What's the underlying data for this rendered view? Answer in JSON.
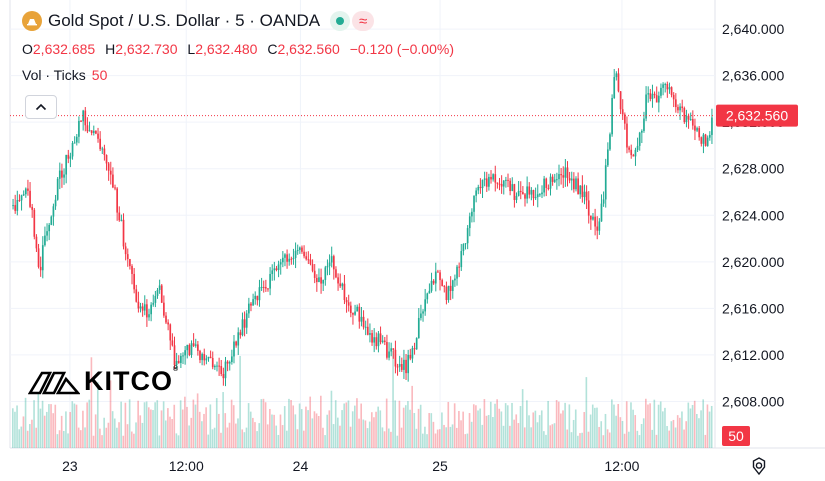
{
  "header": {
    "symbol": "Gold Spot / U.S. Dollar · 5 · OANDA",
    "open_key": "O",
    "open": "2,632.685",
    "high_key": "H",
    "high": "2,632.730",
    "low_key": "L",
    "low": "2,632.480",
    "close_key": "C",
    "close": "2,632.560",
    "change": "−0.120 (−0.00%)",
    "volume_label": "Vol · Ticks",
    "volume_value": "50",
    "market_status_icons": [
      "open-dot-icon",
      "approx-icon"
    ]
  },
  "watermark": {
    "brand": "KITCO",
    "reg": "®"
  },
  "colors": {
    "up": "#22ab94",
    "down": "#f23645",
    "price_label": "#f23645"
  },
  "chart_data": {
    "type": "candlestick",
    "title": "Gold Spot / U.S. Dollar · 5 · OANDA",
    "y_ticks": [
      "2,608.000",
      "2,612.000",
      "2,616.000",
      "2,620.000",
      "2,624.000",
      "2,628.000",
      "2,632.000",
      "2,636.000",
      "2,640.000"
    ],
    "y_tick_values": [
      2608,
      2612,
      2616,
      2620,
      2624,
      2628,
      2632,
      2636,
      2640
    ],
    "ylim": [
      2604.0,
      2642.5
    ],
    "x_ticks": [
      "23",
      "12:00",
      "24",
      "25",
      "12:00"
    ],
    "x_tick_positions": [
      0.085,
      0.25,
      0.412,
      0.61,
      0.868
    ],
    "last_price": 2632.56,
    "last_price_label": "2,632.560",
    "volume_last_label": "50",
    "grid": true,
    "price_path": [
      [
        0.0,
        2624.8
      ],
      [
        0.01,
        2625.4
      ],
      [
        0.02,
        2626.2
      ],
      [
        0.03,
        2623.0
      ],
      [
        0.037,
        2619.0
      ],
      [
        0.045,
        2621.5
      ],
      [
        0.055,
        2624.5
      ],
      [
        0.068,
        2627.5
      ],
      [
        0.08,
        2629.0
      ],
      [
        0.09,
        2631.0
      ],
      [
        0.1,
        2632.5
      ],
      [
        0.112,
        2631.2
      ],
      [
        0.122,
        2630.0
      ],
      [
        0.132,
        2629.0
      ],
      [
        0.145,
        2626.0
      ],
      [
        0.158,
        2622.0
      ],
      [
        0.17,
        2618.5
      ],
      [
        0.182,
        2616.0
      ],
      [
        0.195,
        2615.5
      ],
      [
        0.208,
        2618.0
      ],
      [
        0.22,
        2615.0
      ],
      [
        0.232,
        2611.0
      ],
      [
        0.245,
        2612.0
      ],
      [
        0.258,
        2613.0
      ],
      [
        0.272,
        2611.5
      ],
      [
        0.285,
        2611.0
      ],
      [
        0.3,
        2610.5
      ],
      [
        0.312,
        2612.0
      ],
      [
        0.325,
        2614.0
      ],
      [
        0.338,
        2616.0
      ],
      [
        0.352,
        2617.5
      ],
      [
        0.365,
        2618.0
      ],
      [
        0.38,
        2619.5
      ],
      [
        0.395,
        2620.5
      ],
      [
        0.41,
        2621.5
      ],
      [
        0.425,
        2619.5
      ],
      [
        0.44,
        2618.0
      ],
      [
        0.455,
        2620.5
      ],
      [
        0.468,
        2618.0
      ],
      [
        0.48,
        2616.5
      ],
      [
        0.495,
        2615.5
      ],
      [
        0.51,
        2614.0
      ],
      [
        0.525,
        2613.0
      ],
      [
        0.538,
        2612.0
      ],
      [
        0.55,
        2611.5
      ],
      [
        0.562,
        2611.0
      ],
      [
        0.572,
        2612.5
      ],
      [
        0.582,
        2615.0
      ],
      [
        0.595,
        2617.5
      ],
      [
        0.608,
        2619.5
      ],
      [
        0.62,
        2617.0
      ],
      [
        0.632,
        2619.0
      ],
      [
        0.645,
        2621.5
      ],
      [
        0.655,
        2624.5
      ],
      [
        0.665,
        2626.5
      ],
      [
        0.68,
        2627.0
      ],
      [
        0.695,
        2627.3
      ],
      [
        0.71,
        2626.5
      ],
      [
        0.725,
        2625.5
      ],
      [
        0.74,
        2626.0
      ],
      [
        0.755,
        2626.5
      ],
      [
        0.77,
        2627.0
      ],
      [
        0.785,
        2628.0
      ],
      [
        0.8,
        2627.0
      ],
      [
        0.815,
        2626.0
      ],
      [
        0.825,
        2624.0
      ],
      [
        0.835,
        2622.5
      ],
      [
        0.845,
        2626.0
      ],
      [
        0.855,
        2632.0
      ],
      [
        0.862,
        2637.5
      ],
      [
        0.868,
        2633.5
      ],
      [
        0.878,
        2630.5
      ],
      [
        0.888,
        2628.5
      ],
      [
        0.898,
        2631.0
      ],
      [
        0.908,
        2634.5
      ],
      [
        0.92,
        2634.0
      ],
      [
        0.932,
        2635.5
      ],
      [
        0.945,
        2633.5
      ],
      [
        0.958,
        2632.8
      ],
      [
        0.97,
        2632.0
      ],
      [
        0.982,
        2631.0
      ],
      [
        0.992,
        2630.0
      ],
      [
        1.0,
        2632.56
      ]
    ]
  }
}
